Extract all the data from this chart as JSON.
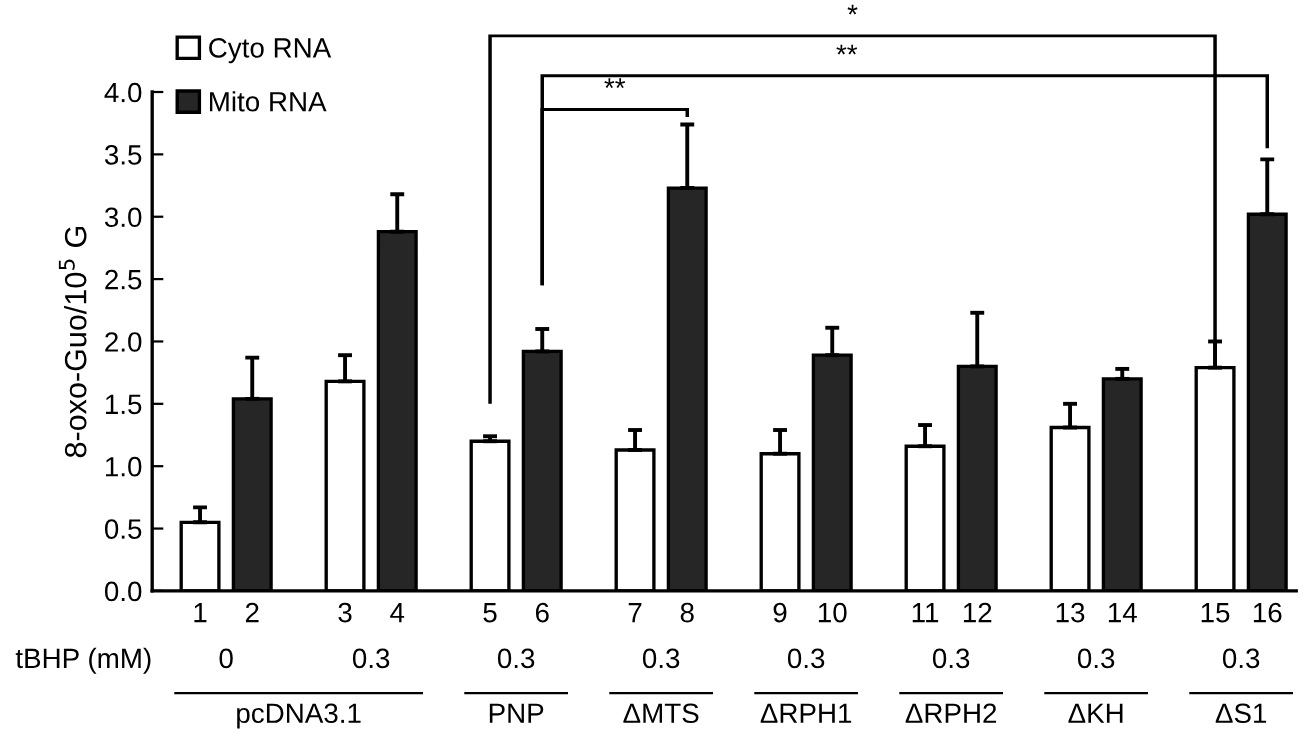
{
  "chart_data": {
    "type": "bar",
    "ylabel": "8-oxo-Guo/10$^{5}$ G",
    "categories": [
      "1",
      "2",
      "3",
      "4",
      "5",
      "6",
      "7",
      "8",
      "9",
      "10",
      "11",
      "12",
      "13",
      "14",
      "15",
      "16"
    ],
    "series": [
      {
        "name": "Cyto RNA",
        "color": "#ffffff",
        "values": [
          0.55,
          null,
          1.68,
          null,
          1.2,
          null,
          1.13,
          null,
          1.1,
          null,
          1.16,
          null,
          1.31,
          null,
          1.79,
          null
        ],
        "errors": [
          [
            0.55,
            0.67
          ],
          null,
          [
            1.68,
            1.89
          ],
          null,
          [
            1.2,
            1.24
          ],
          null,
          [
            1.13,
            1.29
          ],
          null,
          [
            1.1,
            1.29
          ],
          null,
          [
            1.16,
            1.33
          ],
          null,
          [
            1.31,
            1.5
          ],
          null,
          [
            1.79,
            2.0
          ],
          null
        ]
      },
      {
        "name": "Mito RNA",
        "color": "#262626",
        "values": [
          null,
          1.54,
          null,
          2.88,
          null,
          1.92,
          null,
          3.23,
          null,
          1.89,
          null,
          1.8,
          null,
          1.7,
          null,
          3.02
        ],
        "errors": [
          null,
          [
            1.54,
            1.87
          ],
          null,
          [
            2.88,
            3.18
          ],
          null,
          [
            1.92,
            2.1
          ],
          null,
          [
            3.23,
            3.74
          ],
          null,
          [
            1.89,
            2.11
          ],
          null,
          [
            1.8,
            2.23
          ],
          null,
          [
            1.7,
            1.78
          ],
          null,
          [
            3.02,
            3.46
          ]
        ]
      }
    ],
    "ylim": [
      0,
      4.0
    ],
    "yticks": [
      {
        "value": 0,
        "label": "0.0"
      },
      0.5,
      {
        "value": 1,
        "label": "1.0"
      },
      1.5,
      {
        "value": 2,
        "label": "2.0"
      },
      2.5,
      {
        "value": 3,
        "label": "3.0"
      },
      3.5,
      {
        "value": 4,
        "label": "4.0"
      }
    ],
    "legend": "top left",
    "grid": false,
    "annotations": [
      "*",
      "**",
      "**",
      "tBHP (mM)",
      "0",
      "0.3",
      "0.3",
      "0.3",
      "0.3",
      "0.3",
      "0.3",
      "0.3",
      "pcDNA3.1",
      "PNP",
      "ΔMTS",
      "ΔRPH1",
      "ΔRPH2",
      "ΔKH",
      "ΔS1"
    ]
  }
}
